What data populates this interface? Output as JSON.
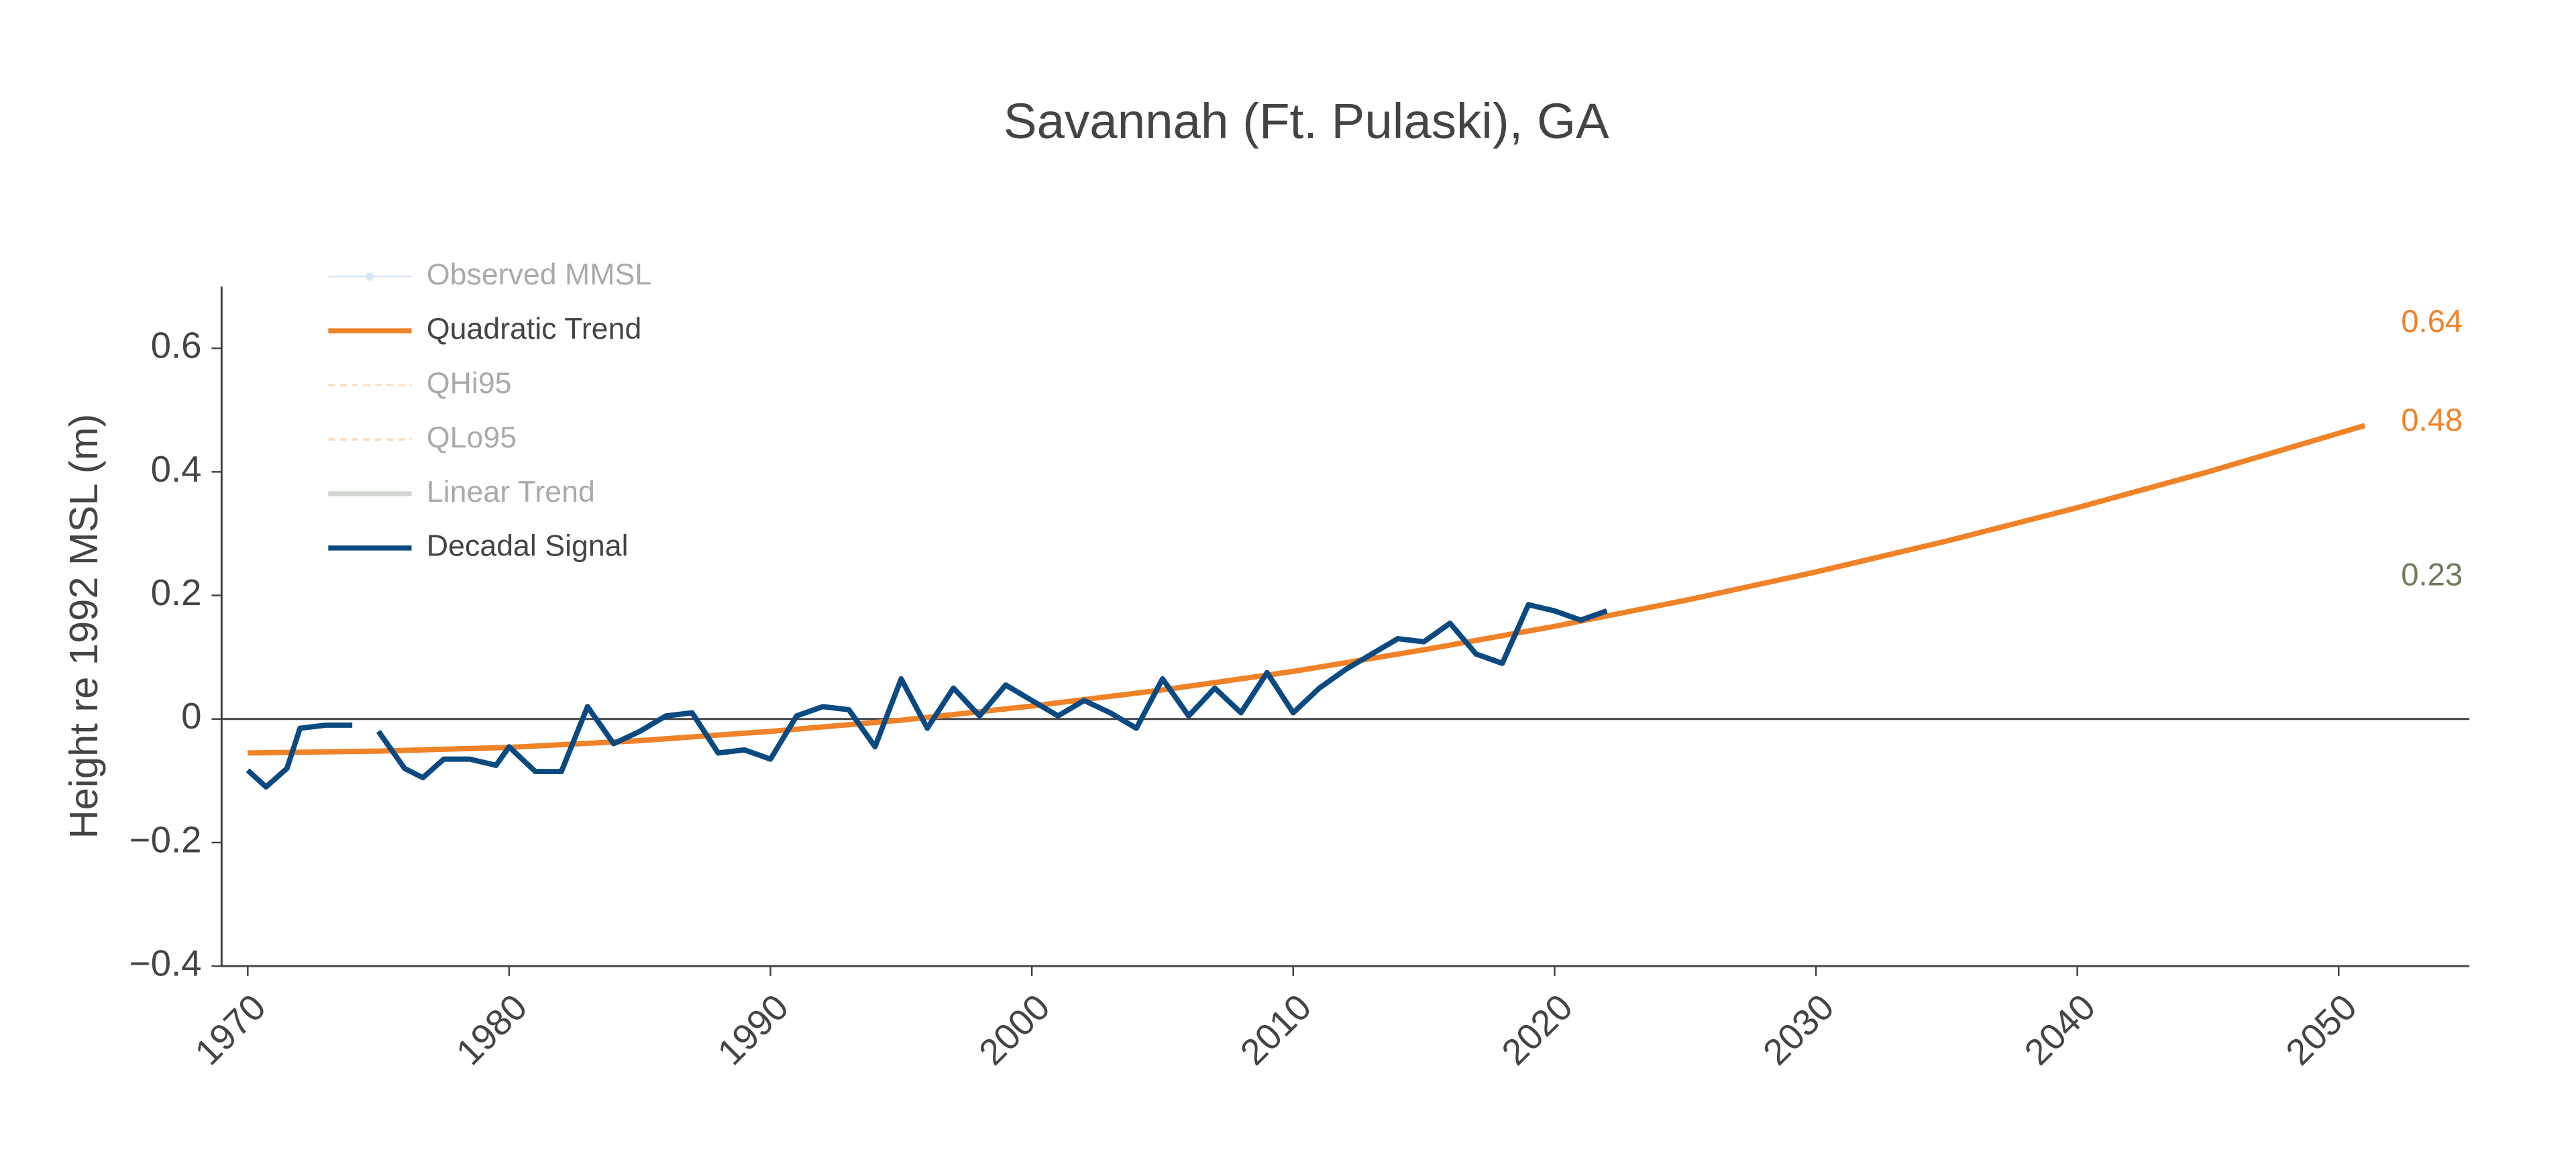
{
  "chart_data": {
    "type": "line",
    "title": "Savannah (Ft. Pulaski), GA",
    "y_label": "Height re 1992 MSL (m)",
    "xlim": [
      1969,
      2055
    ],
    "ylim": [
      -0.4,
      0.7
    ],
    "xticks": [
      1970,
      1980,
      1990,
      2000,
      2010,
      2020,
      2030,
      2040,
      2050
    ],
    "yticks": [
      {
        "value": -0.4,
        "label": "−0.4"
      },
      {
        "value": -0.2,
        "label": "−0.2"
      },
      0,
      0.2,
      0.4,
      0.6
    ],
    "zero_line": true,
    "grid": false,
    "legend": "upper left",
    "series": [
      {
        "name": "Observed MMSL",
        "color": "#aec7e8",
        "style": "markers",
        "visible": false
      },
      {
        "name": "Quadratic Trend",
        "color": "#f08228",
        "style": "solid",
        "visible": true,
        "x": [
          1970,
          1975,
          1980,
          1985,
          1990,
          1995,
          2000,
          2005,
          2010,
          2015,
          2020,
          2025,
          2030,
          2035,
          2040,
          2045,
          2051
        ],
        "values": [
          -0.055,
          -0.052,
          -0.046,
          -0.035,
          -0.02,
          -0.002,
          0.021,
          0.047,
          0.077,
          0.112,
          0.15,
          0.192,
          0.238,
          0.288,
          0.342,
          0.4,
          0.475
        ]
      },
      {
        "name": "QHi95",
        "color": "#f5b77f",
        "style": "dashed",
        "visible": false
      },
      {
        "name": "QLo95",
        "color": "#f5b77f",
        "style": "dashed",
        "visible": false
      },
      {
        "name": "Linear Trend",
        "color": "#a0a89a",
        "style": "solid",
        "visible": false
      },
      {
        "name": "Decadal Signal",
        "color": "#0b4a80",
        "style": "solid",
        "visible": true,
        "x": [
          1970,
          1970.7,
          1971.5,
          1972,
          1973,
          1974,
          1974.5,
          1975,
          1976,
          1976.7,
          1977.5,
          1978.5,
          1979.5,
          1980,
          1981,
          1982,
          1983,
          1984,
          1985,
          1986,
          1987,
          1988,
          1989,
          1990,
          1991,
          1992,
          1993,
          1994,
          1995,
          1996,
          1997,
          1998,
          1999,
          2000,
          2001,
          2002,
          2003,
          2004,
          2005,
          2006,
          2007,
          2008,
          2009,
          2010,
          2011,
          2012,
          2013,
          2014,
          2015,
          2016,
          2017,
          2018,
          2019,
          2020,
          2021,
          2022
        ],
        "values": [
          -0.083,
          -0.11,
          -0.08,
          -0.015,
          -0.01,
          -0.01,
          null,
          -0.02,
          -0.08,
          -0.095,
          -0.065,
          -0.065,
          -0.075,
          -0.045,
          -0.085,
          -0.085,
          0.02,
          -0.04,
          -0.02,
          0.005,
          0.01,
          -0.055,
          -0.05,
          -0.065,
          0.005,
          0.02,
          0.015,
          -0.045,
          0.065,
          -0.015,
          0.05,
          0.005,
          0.055,
          0.03,
          0.005,
          0.03,
          0.01,
          -0.015,
          0.065,
          0.005,
          0.05,
          0.01,
          0.075,
          0.01,
          0.05,
          0.08,
          0.105,
          0.13,
          0.125,
          0.155,
          0.105,
          0.09,
          0.185,
          0.175,
          0.16,
          0.175
        ]
      }
    ],
    "end_labels": [
      {
        "value": 0.64,
        "color": "#f08228"
      },
      {
        "value": 0.48,
        "color": "#f08228"
      },
      {
        "value": 0.23,
        "color": "#6b7d5a"
      }
    ]
  }
}
